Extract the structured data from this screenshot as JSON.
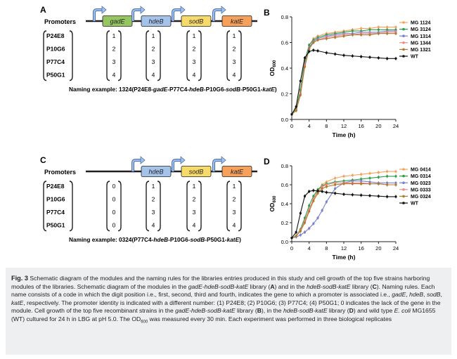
{
  "panels": {
    "A": {
      "letter": "A",
      "promoters_label": "Promoters",
      "genes": [
        {
          "name": "gadE",
          "color": "#95c661"
        },
        {
          "name": "hdeB",
          "color": "#a4c3ea"
        },
        {
          "name": "sodB",
          "color": "#f7db6a"
        },
        {
          "name": "katE",
          "color": "#f5a05b"
        }
      ],
      "row_labels": [
        "P24E8",
        "P10G6",
        "P77C4",
        "P50G1"
      ],
      "columns": [
        [
          "1",
          "2",
          "3",
          "4"
        ],
        [
          "1",
          "2",
          "3",
          "4"
        ],
        [
          "1",
          "2",
          "3",
          "4"
        ],
        [
          "1",
          "2",
          "3",
          "4"
        ]
      ],
      "naming_prefix": "Naming example: 1324(P24E8-",
      "naming_parts": [
        "gadE",
        "-P77C4-",
        "hdeB",
        "-P10G6-",
        "sodB",
        "-P50G1-",
        "katE",
        ")"
      ]
    },
    "C": {
      "letter": "C",
      "promoters_label": "Promoters",
      "genes": [
        {
          "name": "hdeB",
          "color": "#a4c3ea"
        },
        {
          "name": "sodB",
          "color": "#f7db6a"
        },
        {
          "name": "katE",
          "color": "#f5a05b"
        }
      ],
      "row_labels": [
        "P24E8",
        "P10G6",
        "P77C4",
        "P50G1"
      ],
      "columns": [
        [
          "0",
          "0",
          "0",
          "0"
        ],
        [
          "1",
          "2",
          "3",
          "4"
        ],
        [
          "1",
          "2",
          "3",
          "4"
        ],
        [
          "1",
          "2",
          "3",
          "4"
        ]
      ],
      "naming_prefix": "Naming example: 0324(P77C4-",
      "naming_parts": [
        "hdeB",
        "-P10G6-",
        "sodB",
        "-P50G1-",
        "katE",
        ")"
      ]
    }
  },
  "chart_data": [
    {
      "panel": "B",
      "type": "line",
      "xlabel": "Time (h)",
      "ylabel": "OD600",
      "xlim": [
        0,
        24
      ],
      "ylim": [
        0,
        0.8
      ],
      "xticks": [
        0,
        4,
        8,
        12,
        16,
        20,
        24
      ],
      "yticks": [
        0.0,
        0.2,
        0.4,
        0.6,
        0.8
      ],
      "legend_position": "top-right",
      "x": [
        0,
        1,
        2,
        3,
        4,
        5,
        6,
        8,
        10,
        12,
        14,
        16,
        18,
        20,
        22,
        24
      ],
      "series": [
        {
          "name": "MG 1124",
          "color": "#f6a25a",
          "values": [
            0.04,
            0.08,
            0.22,
            0.45,
            0.58,
            0.63,
            0.65,
            0.67,
            0.68,
            0.69,
            0.7,
            0.71,
            0.71,
            0.72,
            0.72,
            0.72
          ]
        },
        {
          "name": "MG 3124",
          "color": "#2e9e4a",
          "values": [
            0.04,
            0.08,
            0.23,
            0.46,
            0.58,
            0.62,
            0.64,
            0.66,
            0.67,
            0.68,
            0.69,
            0.69,
            0.7,
            0.7,
            0.7,
            0.7
          ]
        },
        {
          "name": "MG 1314",
          "color": "#7a7fd0",
          "values": [
            0.04,
            0.07,
            0.2,
            0.43,
            0.56,
            0.61,
            0.63,
            0.65,
            0.66,
            0.67,
            0.67,
            0.68,
            0.68,
            0.68,
            0.69,
            0.69
          ]
        },
        {
          "name": "MG 1344",
          "color": "#f08a8a",
          "values": [
            0.04,
            0.07,
            0.2,
            0.42,
            0.55,
            0.6,
            0.62,
            0.64,
            0.65,
            0.66,
            0.66,
            0.67,
            0.67,
            0.67,
            0.68,
            0.68
          ]
        },
        {
          "name": "MG 1321",
          "color": "#b07a2e",
          "values": [
            0.04,
            0.07,
            0.19,
            0.41,
            0.55,
            0.6,
            0.62,
            0.63,
            0.64,
            0.65,
            0.66,
            0.66,
            0.66,
            0.67,
            0.67,
            0.67
          ]
        },
        {
          "name": "WT",
          "color": "#111111",
          "values": [
            0.04,
            0.1,
            0.3,
            0.48,
            0.53,
            0.54,
            0.535,
            0.52,
            0.51,
            0.5,
            0.495,
            0.49,
            0.485,
            0.48,
            0.475,
            0.475
          ]
        }
      ]
    },
    {
      "panel": "D",
      "type": "line",
      "xlabel": "Time (h)",
      "ylabel": "OD600",
      "xlim": [
        0,
        24
      ],
      "ylim": [
        0,
        0.8
      ],
      "xticks": [
        0,
        4,
        8,
        12,
        16,
        20,
        24
      ],
      "yticks": [
        0.0,
        0.2,
        0.4,
        0.6,
        0.8
      ],
      "legend_position": "top-right",
      "x": [
        0,
        1,
        2,
        3,
        4,
        5,
        6,
        7,
        8,
        10,
        12,
        14,
        16,
        18,
        20,
        22,
        24
      ],
      "series": [
        {
          "name": "MG 0414",
          "color": "#f6a25a",
          "values": [
            0.04,
            0.06,
            0.12,
            0.22,
            0.34,
            0.45,
            0.54,
            0.6,
            0.63,
            0.67,
            0.69,
            0.7,
            0.71,
            0.72,
            0.73,
            0.74,
            0.74
          ]
        },
        {
          "name": "MG 0314",
          "color": "#2e9e4a",
          "values": [
            0.04,
            0.06,
            0.13,
            0.25,
            0.38,
            0.48,
            0.55,
            0.59,
            0.61,
            0.63,
            0.64,
            0.65,
            0.66,
            0.67,
            0.68,
            0.69,
            0.69
          ]
        },
        {
          "name": "MG 0323",
          "color": "#7a7fd0",
          "values": [
            0.04,
            0.05,
            0.07,
            0.1,
            0.14,
            0.19,
            0.25,
            0.33,
            0.42,
            0.56,
            0.62,
            0.64,
            0.64,
            0.63,
            0.62,
            0.62,
            0.62
          ]
        },
        {
          "name": "MG 0333",
          "color": "#f08a8a",
          "values": [
            0.04,
            0.06,
            0.12,
            0.22,
            0.34,
            0.45,
            0.53,
            0.58,
            0.6,
            0.62,
            0.62,
            0.62,
            0.62,
            0.61,
            0.61,
            0.6,
            0.6
          ]
        },
        {
          "name": "MG 0324",
          "color": "#b07a2e",
          "values": [
            0.04,
            0.06,
            0.11,
            0.2,
            0.32,
            0.43,
            0.51,
            0.56,
            0.58,
            0.6,
            0.61,
            0.61,
            0.61,
            0.61,
            0.61,
            0.6,
            0.6
          ]
        },
        {
          "name": "WT",
          "color": "#111111",
          "values": [
            0.04,
            0.1,
            0.3,
            0.48,
            0.53,
            0.54,
            0.535,
            0.53,
            0.52,
            0.51,
            0.5,
            0.495,
            0.49,
            0.485,
            0.48,
            0.475,
            0.475
          ]
        }
      ]
    }
  ],
  "caption": {
    "fig_label": "Fig. 3",
    "text": "Schematic diagram of the modules and the naming rules for the libraries entries produced in this study and cell growth of the top five strains harboring modules of the libraries. Schematic diagram of the modules in the gadE-hdeB-sodB-katE library (A) and in the hdeB-sodB-katE library (C). Naming rules. Each name consists of a code in which the digit position i.e., first, second, third and fourth, indicates the gene to which a promoter is associated i.e., gadE, hdeB, sodB, katE, respectively. The promoter identity is indicated with a different number: (1) P24E8; (2) P10G6; (3) P77C4; (4) P50G1; 0 indicates the lack of the gene in the module. Cell growth of the top five recombinant strains in the gadE-hdeB-sodB-katE library (B), in the hdeB-sodB-katE library (D) and wild type E. coli MG1655 (WT) cultured for 24 h in LBG at pH 5.0. The OD600 was measured every 30 min. Each experiment was performed in three biological replicates"
  }
}
